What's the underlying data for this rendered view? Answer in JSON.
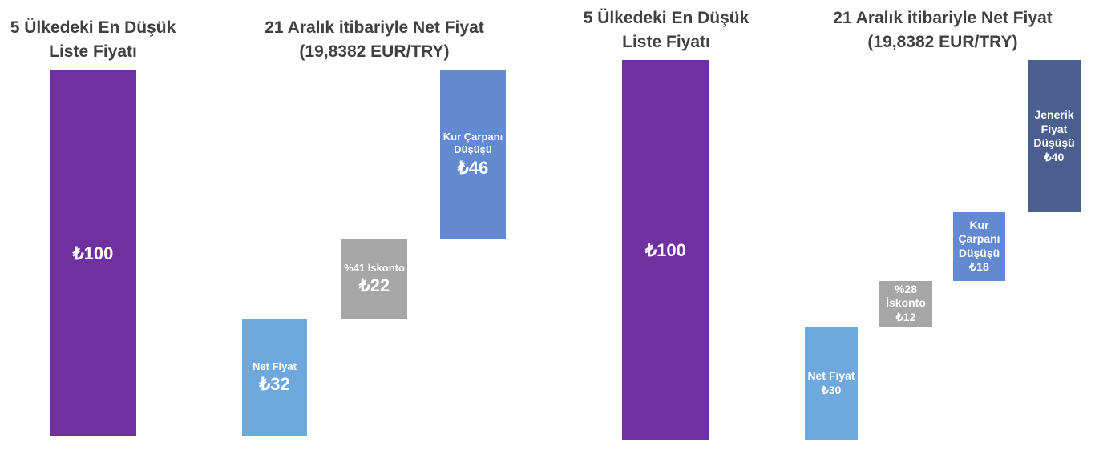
{
  "chart_data": [
    {
      "type": "waterfall",
      "left_title": [
        "5 Ülkedeki En Düşük",
        "Liste Fiyatı"
      ],
      "right_title": [
        "21 Aralık itibariyle Net Fiyat",
        "(19,8382 EUR/TRY)"
      ],
      "categories": [
        null,
        "Net Fiyat",
        "%41 İskonto",
        "Kur Çarpanı Düşüşü"
      ],
      "values": [
        100,
        32,
        22,
        46
      ],
      "value_labels": [
        "₺100",
        "₺32",
        "₺22",
        "₺46"
      ],
      "colors": [
        "#7030a0",
        "#6fa8dc",
        "#a6a6a6",
        "#6389d0"
      ]
    },
    {
      "type": "waterfall",
      "left_title": [
        "5 Ülkedeki En Düşük",
        "Liste Fiyatı"
      ],
      "right_title": [
        "21 Aralık itibariyle Net Fiyat",
        "(19,8382 EUR/TRY)"
      ],
      "categories": [
        null,
        "Net Fiyat",
        "%28 İskonto",
        "Kur Çarpanı Düşüşü",
        "Jenerik Fiyat Düşüşü"
      ],
      "values": [
        100,
        30,
        12,
        18,
        40
      ],
      "value_labels": [
        "₺100",
        "₺30",
        "₺12",
        "₺18",
        "₺40"
      ],
      "colors": [
        "#7030a0",
        "#6fa8dc",
        "#a6a6a6",
        "#6389d0",
        "#4a5f8f"
      ]
    }
  ]
}
